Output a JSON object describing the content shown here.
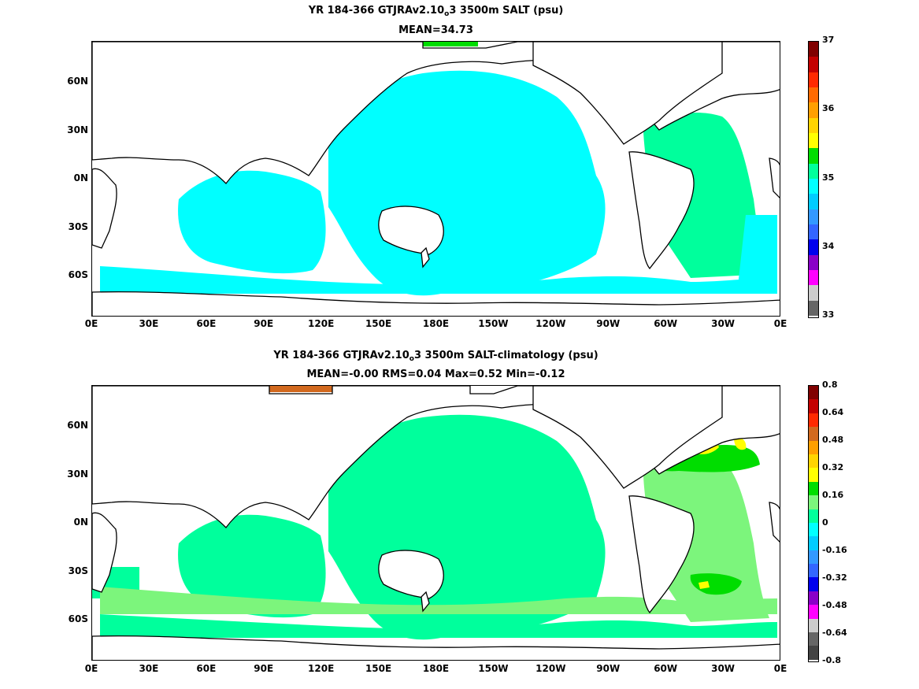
{
  "top": {
    "title_prefix": "YR 184-366 GTJRAv2.10",
    "title_sub": "o",
    "title_suffix": "3 3500m SALT (psu)",
    "subtitle": "MEAN=34.73",
    "colorbar": {
      "labels": [
        "37",
        "36",
        "35",
        "34",
        "33"
      ],
      "colors": [
        "#800000",
        "#c40000",
        "#ff2a00",
        "#ff6a00",
        "#ff9f00",
        "#ffd400",
        "#ffff00",
        "#00dd00",
        "#00ff9c",
        "#00ffff",
        "#00ccff",
        "#3399ff",
        "#3366ff",
        "#0000ee",
        "#8a00c8",
        "#ff00ff",
        "#cccccc",
        "#666666"
      ]
    },
    "ocean_color": "#00ffff",
    "atlantic_color": "#00ff9c",
    "arctic_high_color": "#ffff00",
    "arctic_green_color": "#00dd00"
  },
  "bottom": {
    "title_prefix": "YR 184-366 GTJRAv2.10",
    "title_sub": "o",
    "title_suffix": "3 3500m SALT-climatology (psu)",
    "subtitle": "MEAN=-0.00   RMS=0.04   Max=0.52   Min=-0.12",
    "colorbar": {
      "labels": [
        "0.8",
        "0.64",
        "0.48",
        "0.32",
        "0.16",
        "0",
        "-0.16",
        "-0.32",
        "-0.48",
        "-0.64",
        "-0.8"
      ],
      "colors": [
        "#800000",
        "#c40000",
        "#ff2a00",
        "#d2691e",
        "#ff9f00",
        "#ffd400",
        "#ffff00",
        "#00dd00",
        "#7cf57c",
        "#00ff9c",
        "#00ffff",
        "#00ccff",
        "#3399ff",
        "#3366ff",
        "#0000ee",
        "#8a00c8",
        "#ff00ff",
        "#cccccc",
        "#666666",
        "#444444"
      ]
    },
    "ocean_color": "#00ff9c",
    "band_color": "#7cf57c",
    "atlantic_hi_color": "#00dd00",
    "atlantic_max_color": "#ffff00",
    "arctic_color": "#d2691e"
  },
  "axes": {
    "lat_labels": [
      "60N",
      "30N",
      "0N",
      "30S",
      "60S"
    ],
    "lon_labels": [
      "0E",
      "30E",
      "60E",
      "90E",
      "120E",
      "150E",
      "180E",
      "150W",
      "120W",
      "90W",
      "60W",
      "30W",
      "0E"
    ]
  }
}
